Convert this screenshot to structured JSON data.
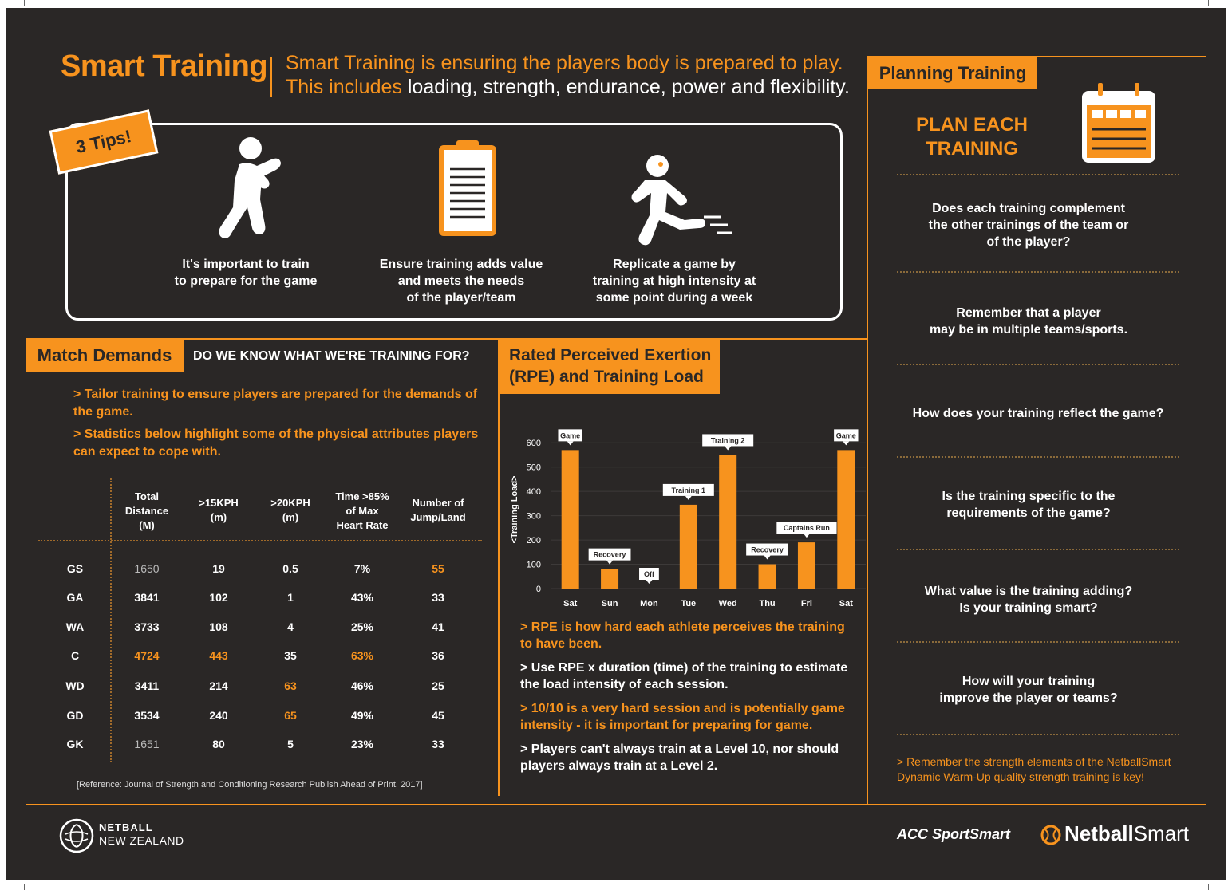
{
  "header": {
    "title": "Smart Training",
    "desc_line1": "Smart Training is ensuring the players body is prepared to play.",
    "desc_line2_orange": "This includes ",
    "desc_line2_white": "loading, strength, endurance, power and flexibility."
  },
  "tips": {
    "badge": "3 Tips!",
    "items": [
      {
        "icon": "prepare-figure-icon",
        "text": "It's important to train\nto prepare for the game"
      },
      {
        "icon": "clipboard-icon",
        "text": "Ensure training adds value\nand meets the needs\nof the player/team"
      },
      {
        "icon": "running-figure-icon",
        "text": "Replicate a game by\ntraining at high intensity at\nsome point during a week"
      }
    ]
  },
  "match_demands": {
    "tag": "Match Demands",
    "question": "DO WE KNOW WHAT WE'RE TRAINING FOR?",
    "bullets": [
      "> Tailor training to ensure players are prepared for the demands of the game.",
      "> Statistics below highlight some of the physical attributes players can expect to cope with."
    ],
    "columns": [
      "Total\nDistance\n(M)",
      ">15KPH\n(m)",
      ">20KPH\n(m)",
      "Time >85%\nof Max\nHeart Rate",
      "Number of\nJump/Land"
    ],
    "rows": [
      {
        "pos": "GS",
        "vals": [
          "1650",
          "19",
          "0.5",
          "7%",
          "55"
        ]
      },
      {
        "pos": "GA",
        "vals": [
          "3841",
          "102",
          "1",
          "43%",
          "33"
        ]
      },
      {
        "pos": "WA",
        "vals": [
          "3733",
          "108",
          "4",
          "25%",
          "41"
        ]
      },
      {
        "pos": "C",
        "vals": [
          "4724",
          "443",
          "35",
          "63%",
          "36"
        ]
      },
      {
        "pos": "WD",
        "vals": [
          "3411",
          "214",
          "63",
          "46%",
          "25"
        ]
      },
      {
        "pos": "GD",
        "vals": [
          "3534",
          "240",
          "65",
          "49%",
          "45"
        ]
      },
      {
        "pos": "GK",
        "vals": [
          "1651",
          "80",
          "5",
          "23%",
          "33"
        ]
      }
    ],
    "reference": "[Reference: Journal of Strength and Conditioning Research Publish Ahead of Print, 2017]"
  },
  "rpe": {
    "tag_line1": "Rated Perceived Exertion",
    "tag_line2": "(RPE) and Training Load",
    "notes": [
      {
        "text": "> RPE is how hard each athlete perceives the training to have been.",
        "color": "#f7931e"
      },
      {
        "text": "> Use RPE x duration (time) of the training to estimate the load intensity of each session.",
        "color": "#ffffff"
      },
      {
        "text": "> 10/10 is a very hard session and is potentially game intensity - it is important for preparing for game.",
        "color": "#f7931e"
      },
      {
        "text": "> Players can't always train at a Level 10, nor should players always train at a Level 2.",
        "color": "#ffffff"
      }
    ]
  },
  "chart_data": {
    "type": "bar",
    "categories": [
      "Sat",
      "Sun",
      "Mon",
      "Tue",
      "Wed",
      "Thu",
      "Fri",
      "Sat"
    ],
    "values": [
      570,
      80,
      0,
      345,
      550,
      100,
      190,
      570
    ],
    "bar_labels": [
      "Game",
      "Recovery",
      "Off",
      "Training 1",
      "Training 2",
      "Recovery",
      "Captains Run",
      "Game"
    ],
    "ylabel": "<Training Load>",
    "yticks": [
      0,
      100,
      200,
      300,
      400,
      500,
      600
    ],
    "ylim": [
      0,
      650
    ],
    "bar_color": "#f7931e"
  },
  "planning": {
    "tag": "Planning Training",
    "title": "PLAN EACH\nTRAINING",
    "questions": [
      "Does each training complement\nthe other trainings of the team or\nof the player?",
      "Remember that a player\nmay be in multiple teams/sports.",
      "How does your training reflect the game?",
      "Is the training specific to the\nrequirements of the game?",
      "What value is the training adding?\nIs your training smart?",
      "How will your training\nimprove the player or teams?"
    ],
    "note": "> Remember the strength elements of the NetballSmart Dynamic Warm-Up quality strength training is key!"
  },
  "footer": {
    "nz_line1": "NETBALL",
    "nz_line2": "NEW ZEALAND",
    "acc": "ACC SportSmart",
    "ns_bold": "Netball",
    "ns_light": "Smart"
  }
}
